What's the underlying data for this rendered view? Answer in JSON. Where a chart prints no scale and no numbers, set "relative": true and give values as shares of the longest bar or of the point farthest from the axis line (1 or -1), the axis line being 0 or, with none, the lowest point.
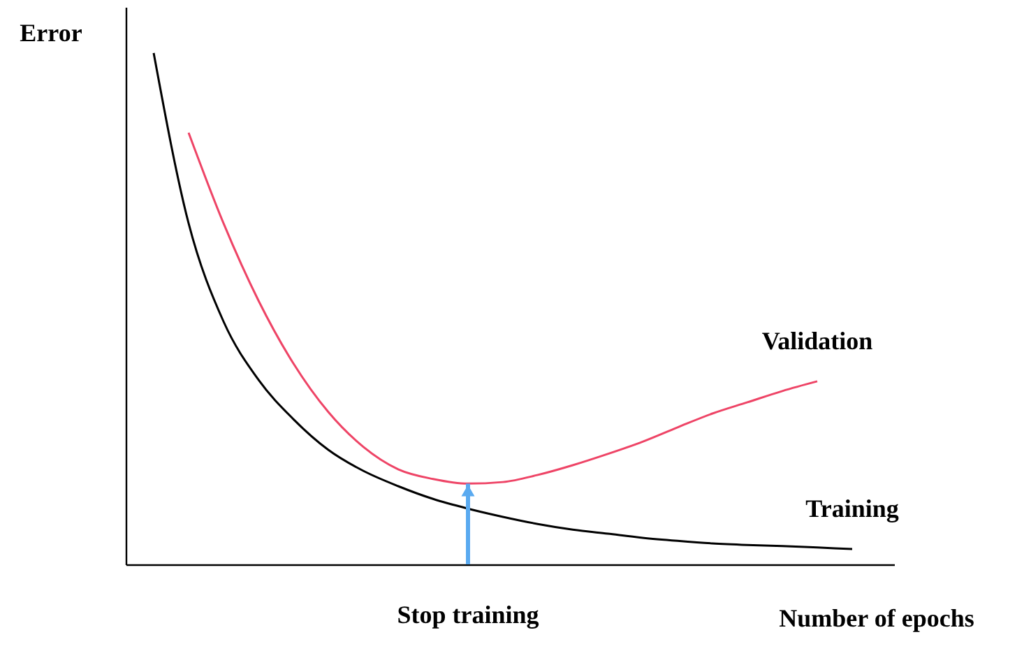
{
  "chart_data": {
    "type": "line",
    "relative": true,
    "xlabel": "Number of epochs",
    "ylabel": "Error",
    "annotations": [
      "Stop training"
    ],
    "categories": [
      null,
      null,
      null,
      null,
      null,
      null,
      null,
      null,
      null,
      null,
      null,
      null,
      null,
      null,
      null,
      null,
      null,
      null,
      null,
      null,
      null
    ],
    "series": [
      {
        "name": "Training",
        "color": "#000000",
        "values": [
          1,
          0.667,
          0.475,
          0.361,
          0.284,
          0.224,
          0.183,
          0.153,
          0.128,
          0.109,
          0.093,
          0.079,
          0.068,
          0.06,
          0.052,
          0.046,
          0.041,
          0.038,
          0.036,
          0.033,
          0.03
        ]
      },
      {
        "name": "Validation",
        "color": "#ee4466",
        "values": [
          null,
          0.844,
          0.667,
          0.516,
          0.393,
          0.298,
          0.23,
          0.186,
          0.167,
          0.158,
          0.161,
          0.175,
          0.194,
          0.216,
          0.24,
          0.268,
          0.295,
          0.317,
          0.339,
          0.358,
          null
        ]
      }
    ]
  }
}
